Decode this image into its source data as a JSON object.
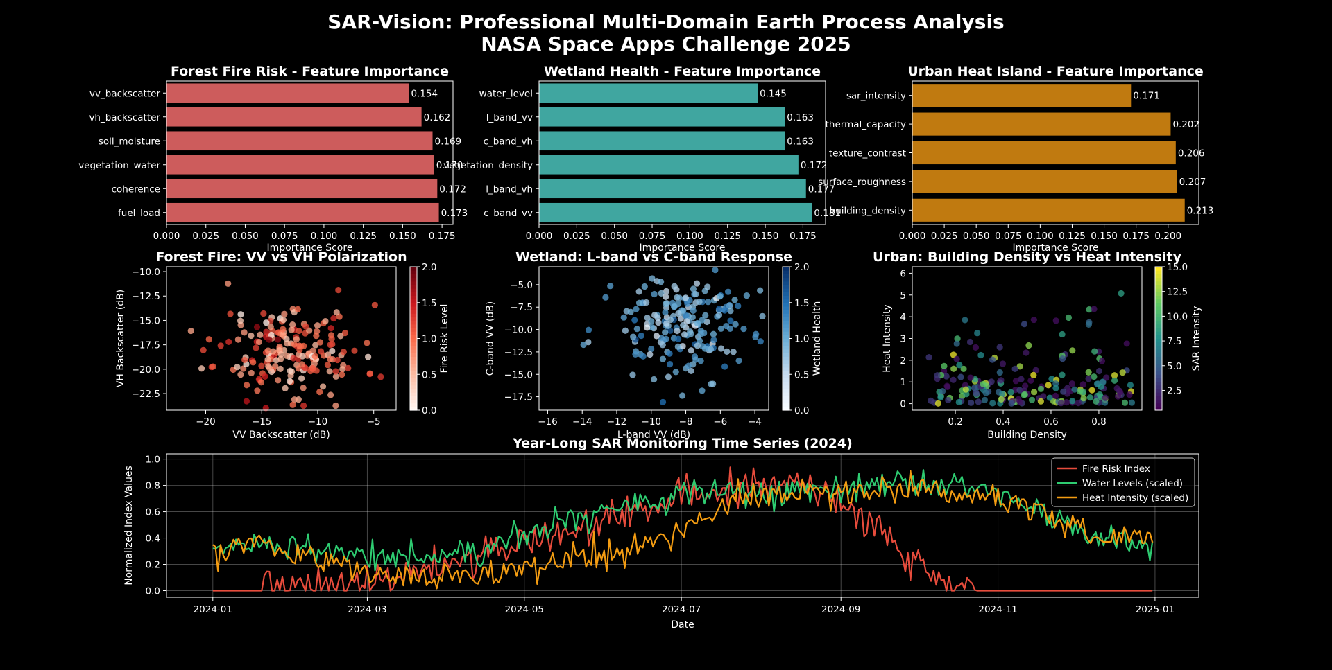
{
  "figure": {
    "title_line1": "SAR-Vision: Professional Multi-Domain Earth Process Analysis",
    "title_line2": "NASA Space Apps Challenge 2025",
    "colors": {
      "background": "#000000",
      "text": "#ffffff",
      "axes": "#ffffff"
    }
  },
  "chart_data": [
    {
      "type": "bar",
      "orientation": "horizontal",
      "title": "Forest Fire Risk - Feature Importance",
      "xlabel": "Importance Score",
      "ylabel": "",
      "categories": [
        "vv_backscatter",
        "vh_backscatter",
        "soil_moisture",
        "vegetation_water",
        "coherence",
        "fuel_load"
      ],
      "values": [
        0.154,
        0.162,
        0.169,
        0.17,
        0.172,
        0.173
      ],
      "data_labels": [
        "0.154",
        "0.162",
        "0.169",
        "0.170",
        "0.172",
        "0.173"
      ],
      "xlim": [
        0,
        0.182
      ],
      "xticks": [
        0,
        0.025,
        0.05,
        0.075,
        0.1,
        0.125,
        0.15,
        0.175
      ],
      "xtick_labels": [
        "0.000",
        "0.025",
        "0.050",
        "0.075",
        "0.100",
        "0.125",
        "0.150",
        "0.175"
      ],
      "color": "#cd5c5c",
      "grid": false
    },
    {
      "type": "bar",
      "orientation": "horizontal",
      "title": "Wetland Health - Feature Importance",
      "xlabel": "Importance Score",
      "ylabel": "",
      "categories": [
        "water_level",
        "l_band_vv",
        "c_band_vh",
        "vegetation_density",
        "l_band_vh",
        "c_band_vv"
      ],
      "values": [
        0.145,
        0.163,
        0.163,
        0.172,
        0.177,
        0.181
      ],
      "data_labels": [
        "0.145",
        "0.163",
        "0.163",
        "0.172",
        "0.177",
        "0.181"
      ],
      "xlim": [
        0,
        0.19
      ],
      "xticks": [
        0,
        0.025,
        0.05,
        0.075,
        0.1,
        0.125,
        0.15,
        0.175
      ],
      "xtick_labels": [
        "0.000",
        "0.025",
        "0.050",
        "0.075",
        "0.100",
        "0.125",
        "0.150",
        "0.175"
      ],
      "color": "#40a6a0",
      "grid": false
    },
    {
      "type": "bar",
      "orientation": "horizontal",
      "title": "Urban Heat Island - Feature Importance",
      "xlabel": "Importance Score",
      "ylabel": "",
      "categories": [
        "sar_intensity",
        "thermal_capacity",
        "texture_contrast",
        "surface_roughness",
        "building_density"
      ],
      "values": [
        0.171,
        0.202,
        0.206,
        0.207,
        0.213
      ],
      "data_labels": [
        "0.171",
        "0.202",
        "0.206",
        "0.207",
        "0.213"
      ],
      "xlim": [
        0,
        0.224
      ],
      "xticks": [
        0,
        0.025,
        0.05,
        0.075,
        0.1,
        0.125,
        0.15,
        0.175,
        0.2
      ],
      "xtick_labels": [
        "0.000",
        "0.025",
        "0.050",
        "0.075",
        "0.100",
        "0.125",
        "0.150",
        "0.175",
        "0.200"
      ],
      "color": "#c07a10",
      "grid": false
    },
    {
      "type": "scatter",
      "title": "Forest Fire: VV vs VH Polarization",
      "xlabel": "VV Backscatter (dB)",
      "ylabel": "VH Backscatter (dB)",
      "xlim": [
        -23.5,
        -3
      ],
      "ylim": [
        -24.2,
        -9.5
      ],
      "xticks": [
        -20,
        -15,
        -10,
        -5
      ],
      "yticks": [
        -22.5,
        -20,
        -17.5,
        -15,
        -12.5,
        -10
      ],
      "xtick_labels": [
        "−20",
        "−15",
        "−10",
        "−5"
      ],
      "ytick_labels": [
        "−22.5",
        "−20.0",
        "−17.5",
        "−15.0",
        "−12.5",
        "−10.0"
      ],
      "colorbar": {
        "label": "Fire Risk Level",
        "range": [
          0,
          2
        ],
        "ticks": [
          0,
          0.5,
          1,
          1.5,
          2
        ],
        "tick_labels": [
          "0.0",
          "0.5",
          "1.0",
          "1.5",
          "2.0"
        ],
        "colormap": "Reds"
      },
      "point_count": 200,
      "x_center": -12.3,
      "x_spread": 3.2,
      "y_center": -18.2,
      "y_spread": 2.4,
      "grid": false
    },
    {
      "type": "scatter",
      "title": "Wetland: L-band vs C-band Response",
      "xlabel": "L-band VV (dB)",
      "ylabel": "C-band VV (dB)",
      "xlim": [
        -16.5,
        -3.2
      ],
      "ylim": [
        -19,
        -3
      ],
      "xticks": [
        -16,
        -14,
        -12,
        -10,
        -8,
        -6,
        -4
      ],
      "yticks": [
        -17.5,
        -15,
        -12.5,
        -10,
        -7.5,
        -5
      ],
      "xtick_labels": [
        "−16",
        "−14",
        "−12",
        "−10",
        "−8",
        "−6",
        "−4"
      ],
      "ytick_labels": [
        "−17.5",
        "−15.0",
        "−12.5",
        "−10.0",
        "−7.5",
        "−5.0"
      ],
      "colorbar": {
        "label": "Wetland Health",
        "range": [
          0,
          2
        ],
        "ticks": [
          0,
          0.5,
          1,
          1.5,
          2
        ],
        "tick_labels": [
          "0.0",
          "0.5",
          "1.0",
          "1.5",
          "2.0"
        ],
        "colormap": "Blues"
      },
      "point_count": 200,
      "x_center": -8.3,
      "x_spread": 2.1,
      "y_center": -9.8,
      "y_spread": 2.8,
      "grid": false
    },
    {
      "type": "scatter",
      "title": "Urban: Building Density vs Heat Intensity",
      "xlabel": "Building Density",
      "ylabel": "Heat Intensity",
      "xlim": [
        0.02,
        0.98
      ],
      "ylim": [
        -0.3,
        6.3
      ],
      "xticks": [
        0.2,
        0.4,
        0.6,
        0.8
      ],
      "yticks": [
        0,
        1,
        2,
        3,
        4,
        5,
        6
      ],
      "xtick_labels": [
        "0.2",
        "0.4",
        "0.6",
        "0.8"
      ],
      "ytick_labels": [
        "0",
        "1",
        "2",
        "3",
        "4",
        "5",
        "6"
      ],
      "colorbar": {
        "label": "SAR Intensity",
        "range": [
          0.5,
          15
        ],
        "ticks": [
          2.5,
          5,
          7.5,
          10,
          12.5,
          15
        ],
        "tick_labels": [
          "2.5",
          "5.0",
          "7.5",
          "10.0",
          "12.5",
          "15.0"
        ],
        "colormap": "viridis"
      },
      "point_count": 200,
      "grid": false
    },
    {
      "type": "line",
      "title": "Year-Long SAR Monitoring Time Series (2024)",
      "xlabel": "Date",
      "ylabel": "Normalized Index Values",
      "x_start": "2024-01-01",
      "x_end": "2024-12-31",
      "xlim": [
        "2023-12-14",
        "2025-01-18"
      ],
      "ylim": [
        -0.05,
        1.04
      ],
      "xticks": [
        "2024-01-01",
        "2024-03-01",
        "2024-05-01",
        "2024-07-01",
        "2024-09-01",
        "2024-11-01",
        "2025-01-01"
      ],
      "xtick_labels": [
        "2024-01",
        "2024-03",
        "2024-05",
        "2024-07",
        "2024-09",
        "2024-11",
        "2025-01"
      ],
      "yticks": [
        0,
        0.2,
        0.4,
        0.6,
        0.8,
        1.0
      ],
      "ytick_labels": [
        "0.0",
        "0.2",
        "0.4",
        "0.6",
        "0.8",
        "1.0"
      ],
      "grid": true,
      "legend_position": "top-right",
      "series": [
        {
          "name": "Fire Risk Index",
          "color": "#e74c3c",
          "anchors": [
            [
              "2024-01-01",
              0
            ],
            [
              "2024-01-20",
              0
            ],
            [
              "2024-02-10",
              0.03
            ],
            [
              "2024-03-01",
              0.08
            ],
            [
              "2024-03-20",
              0.15
            ],
            [
              "2024-04-10",
              0.25
            ],
            [
              "2024-05-01",
              0.37
            ],
            [
              "2024-05-20",
              0.46
            ],
            [
              "2024-06-10",
              0.58
            ],
            [
              "2024-07-01",
              0.7
            ],
            [
              "2024-07-20",
              0.8
            ],
            [
              "2024-08-10",
              0.8
            ],
            [
              "2024-08-25",
              0.75
            ],
            [
              "2024-09-05",
              0.62
            ],
            [
              "2024-09-20",
              0.4
            ],
            [
              "2024-10-05",
              0.15
            ],
            [
              "2024-10-15",
              0.03
            ],
            [
              "2024-10-25",
              0
            ],
            [
              "2024-12-31",
              0
            ]
          ],
          "noise": 0.07,
          "clip_zero": true
        },
        {
          "name": "Water Levels (scaled)",
          "color": "#2ecc71",
          "anchors": [
            [
              "2024-01-01",
              0.3
            ],
            [
              "2024-01-15",
              0.36
            ],
            [
              "2024-02-15",
              0.3
            ],
            [
              "2024-03-15",
              0.24
            ],
            [
              "2024-04-15",
              0.3
            ],
            [
              "2024-05-01",
              0.44
            ],
            [
              "2024-05-20",
              0.55
            ],
            [
              "2024-06-15",
              0.68
            ],
            [
              "2024-07-15",
              0.76
            ],
            [
              "2024-08-15",
              0.76
            ],
            [
              "2024-09-01",
              0.8
            ],
            [
              "2024-09-25",
              0.82
            ],
            [
              "2024-10-25",
              0.78
            ],
            [
              "2024-11-15",
              0.6
            ],
            [
              "2024-12-10",
              0.4
            ],
            [
              "2024-12-31",
              0.33
            ]
          ],
          "noise": 0.05
        },
        {
          "name": "Heat Intensity (scaled)",
          "color": "#f39c12",
          "anchors": [
            [
              "2024-01-01",
              0.3
            ],
            [
              "2024-01-20",
              0.36
            ],
            [
              "2024-02-20",
              0.2
            ],
            [
              "2024-03-10",
              0.12
            ],
            [
              "2024-04-10",
              0.12
            ],
            [
              "2024-05-10",
              0.2
            ],
            [
              "2024-06-10",
              0.28
            ],
            [
              "2024-07-01",
              0.45
            ],
            [
              "2024-07-20",
              0.68
            ],
            [
              "2024-08-10",
              0.72
            ],
            [
              "2024-09-01",
              0.74
            ],
            [
              "2024-10-01",
              0.78
            ],
            [
              "2024-11-01",
              0.7
            ],
            [
              "2024-11-20",
              0.55
            ],
            [
              "2024-12-10",
              0.42
            ],
            [
              "2024-12-31",
              0.38
            ]
          ],
          "noise": 0.055
        }
      ]
    }
  ]
}
